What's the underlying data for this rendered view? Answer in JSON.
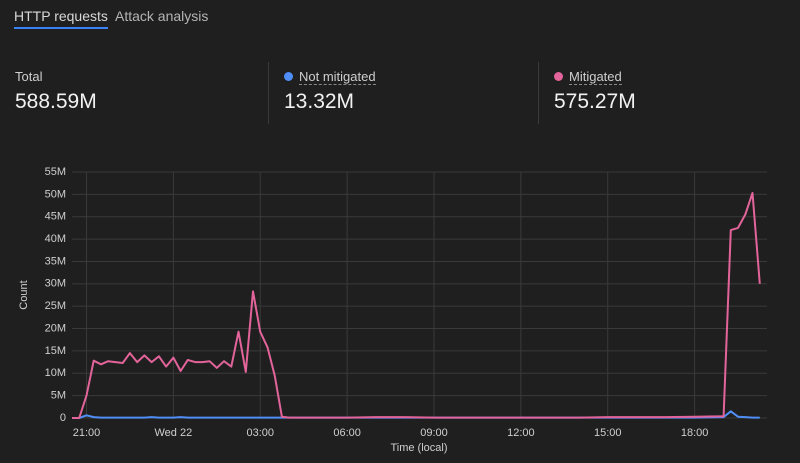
{
  "tabs": [
    "HTTP requests",
    "Attack analysis"
  ],
  "summary": {
    "total_label": "Total",
    "total": "588.59M",
    "not_mitigated": "13.32M",
    "mitigated": "575.27M"
  },
  "chart_data": {
    "type": "line",
    "x_label": "Time (local)",
    "y_label": "Count",
    "x": [
      -0.5,
      -0.25,
      0,
      0.25,
      0.5,
      0.75,
      1,
      1.25,
      1.5,
      1.75,
      2,
      2.25,
      2.5,
      2.75,
      3,
      3.25,
      3.5,
      3.75,
      4,
      4.25,
      4.5,
      4.75,
      5,
      5.25,
      5.5,
      5.75,
      6,
      6.25,
      6.5,
      6.75,
      7,
      8,
      9,
      10,
      11,
      12,
      13,
      14,
      15,
      16,
      17,
      18,
      19,
      20,
      21,
      22,
      22.25,
      22.5,
      22.75,
      23,
      23.25
    ],
    "series": [
      {
        "name": "Not mitigated",
        "color": "#4f8ef7",
        "values": [
          0,
          0,
          0.6,
          0.2,
          0.1,
          0.1,
          0.1,
          0.1,
          0.1,
          0.1,
          0.1,
          0.2,
          0.1,
          0.1,
          0.1,
          0.2,
          0.1,
          0.1,
          0.1,
          0.1,
          0.1,
          0.1,
          0.1,
          0.1,
          0.1,
          0.1,
          0.1,
          0.1,
          0.1,
          0.1,
          0.1,
          0.1,
          0.1,
          0.1,
          0.1,
          0.1,
          0.1,
          0.1,
          0.1,
          0.1,
          0.1,
          0.1,
          0.1,
          0.1,
          0.1,
          0.2,
          1.5,
          0.3,
          0.2,
          0.1,
          0.1
        ]
      },
      {
        "name": "Mitigated",
        "color": "#e2649a",
        "values": [
          0,
          0,
          5,
          12.8,
          12,
          12.7,
          12.5,
          12.3,
          14.5,
          12.5,
          14,
          12.5,
          13.8,
          11.5,
          13.5,
          10.5,
          13,
          12.5,
          12.5,
          12.7,
          11.2,
          12.7,
          11.5,
          19.3,
          10.3,
          28.3,
          19.3,
          15.8,
          9.5,
          0.3,
          0.1,
          0.1,
          0.1,
          0.2,
          0.2,
          0.1,
          0.1,
          0.1,
          0.1,
          0.1,
          0.1,
          0.2,
          0.2,
          0.2,
          0.3,
          0.4,
          42,
          42.5,
          45.5,
          50.3,
          30
        ]
      }
    ],
    "xlim": [
      -0.5,
      23.5
    ],
    "xticks": [
      {
        "value": 0,
        "label": "21:00"
      },
      {
        "value": 3,
        "label": "Wed 22"
      },
      {
        "value": 6,
        "label": "03:00"
      },
      {
        "value": 9,
        "label": "06:00"
      },
      {
        "value": 12,
        "label": "09:00"
      },
      {
        "value": 15,
        "label": "12:00"
      },
      {
        "value": 18,
        "label": "15:00"
      },
      {
        "value": 21,
        "label": "18:00"
      }
    ],
    "ylim": [
      0,
      55
    ],
    "yticks": [
      0,
      {
        "value": 5,
        "label": "5M"
      },
      {
        "value": 10,
        "label": "10M"
      },
      {
        "value": 15,
        "label": "15M"
      },
      {
        "value": 20,
        "label": "20M"
      },
      {
        "value": 25,
        "label": "25M"
      },
      {
        "value": 30,
        "label": "30M"
      },
      {
        "value": 35,
        "label": "35M"
      },
      {
        "value": 40,
        "label": "40M"
      },
      {
        "value": 45,
        "label": "45M"
      },
      {
        "value": 50,
        "label": "50M"
      },
      {
        "value": 55,
        "label": "55M"
      }
    ],
    "grid": true
  }
}
